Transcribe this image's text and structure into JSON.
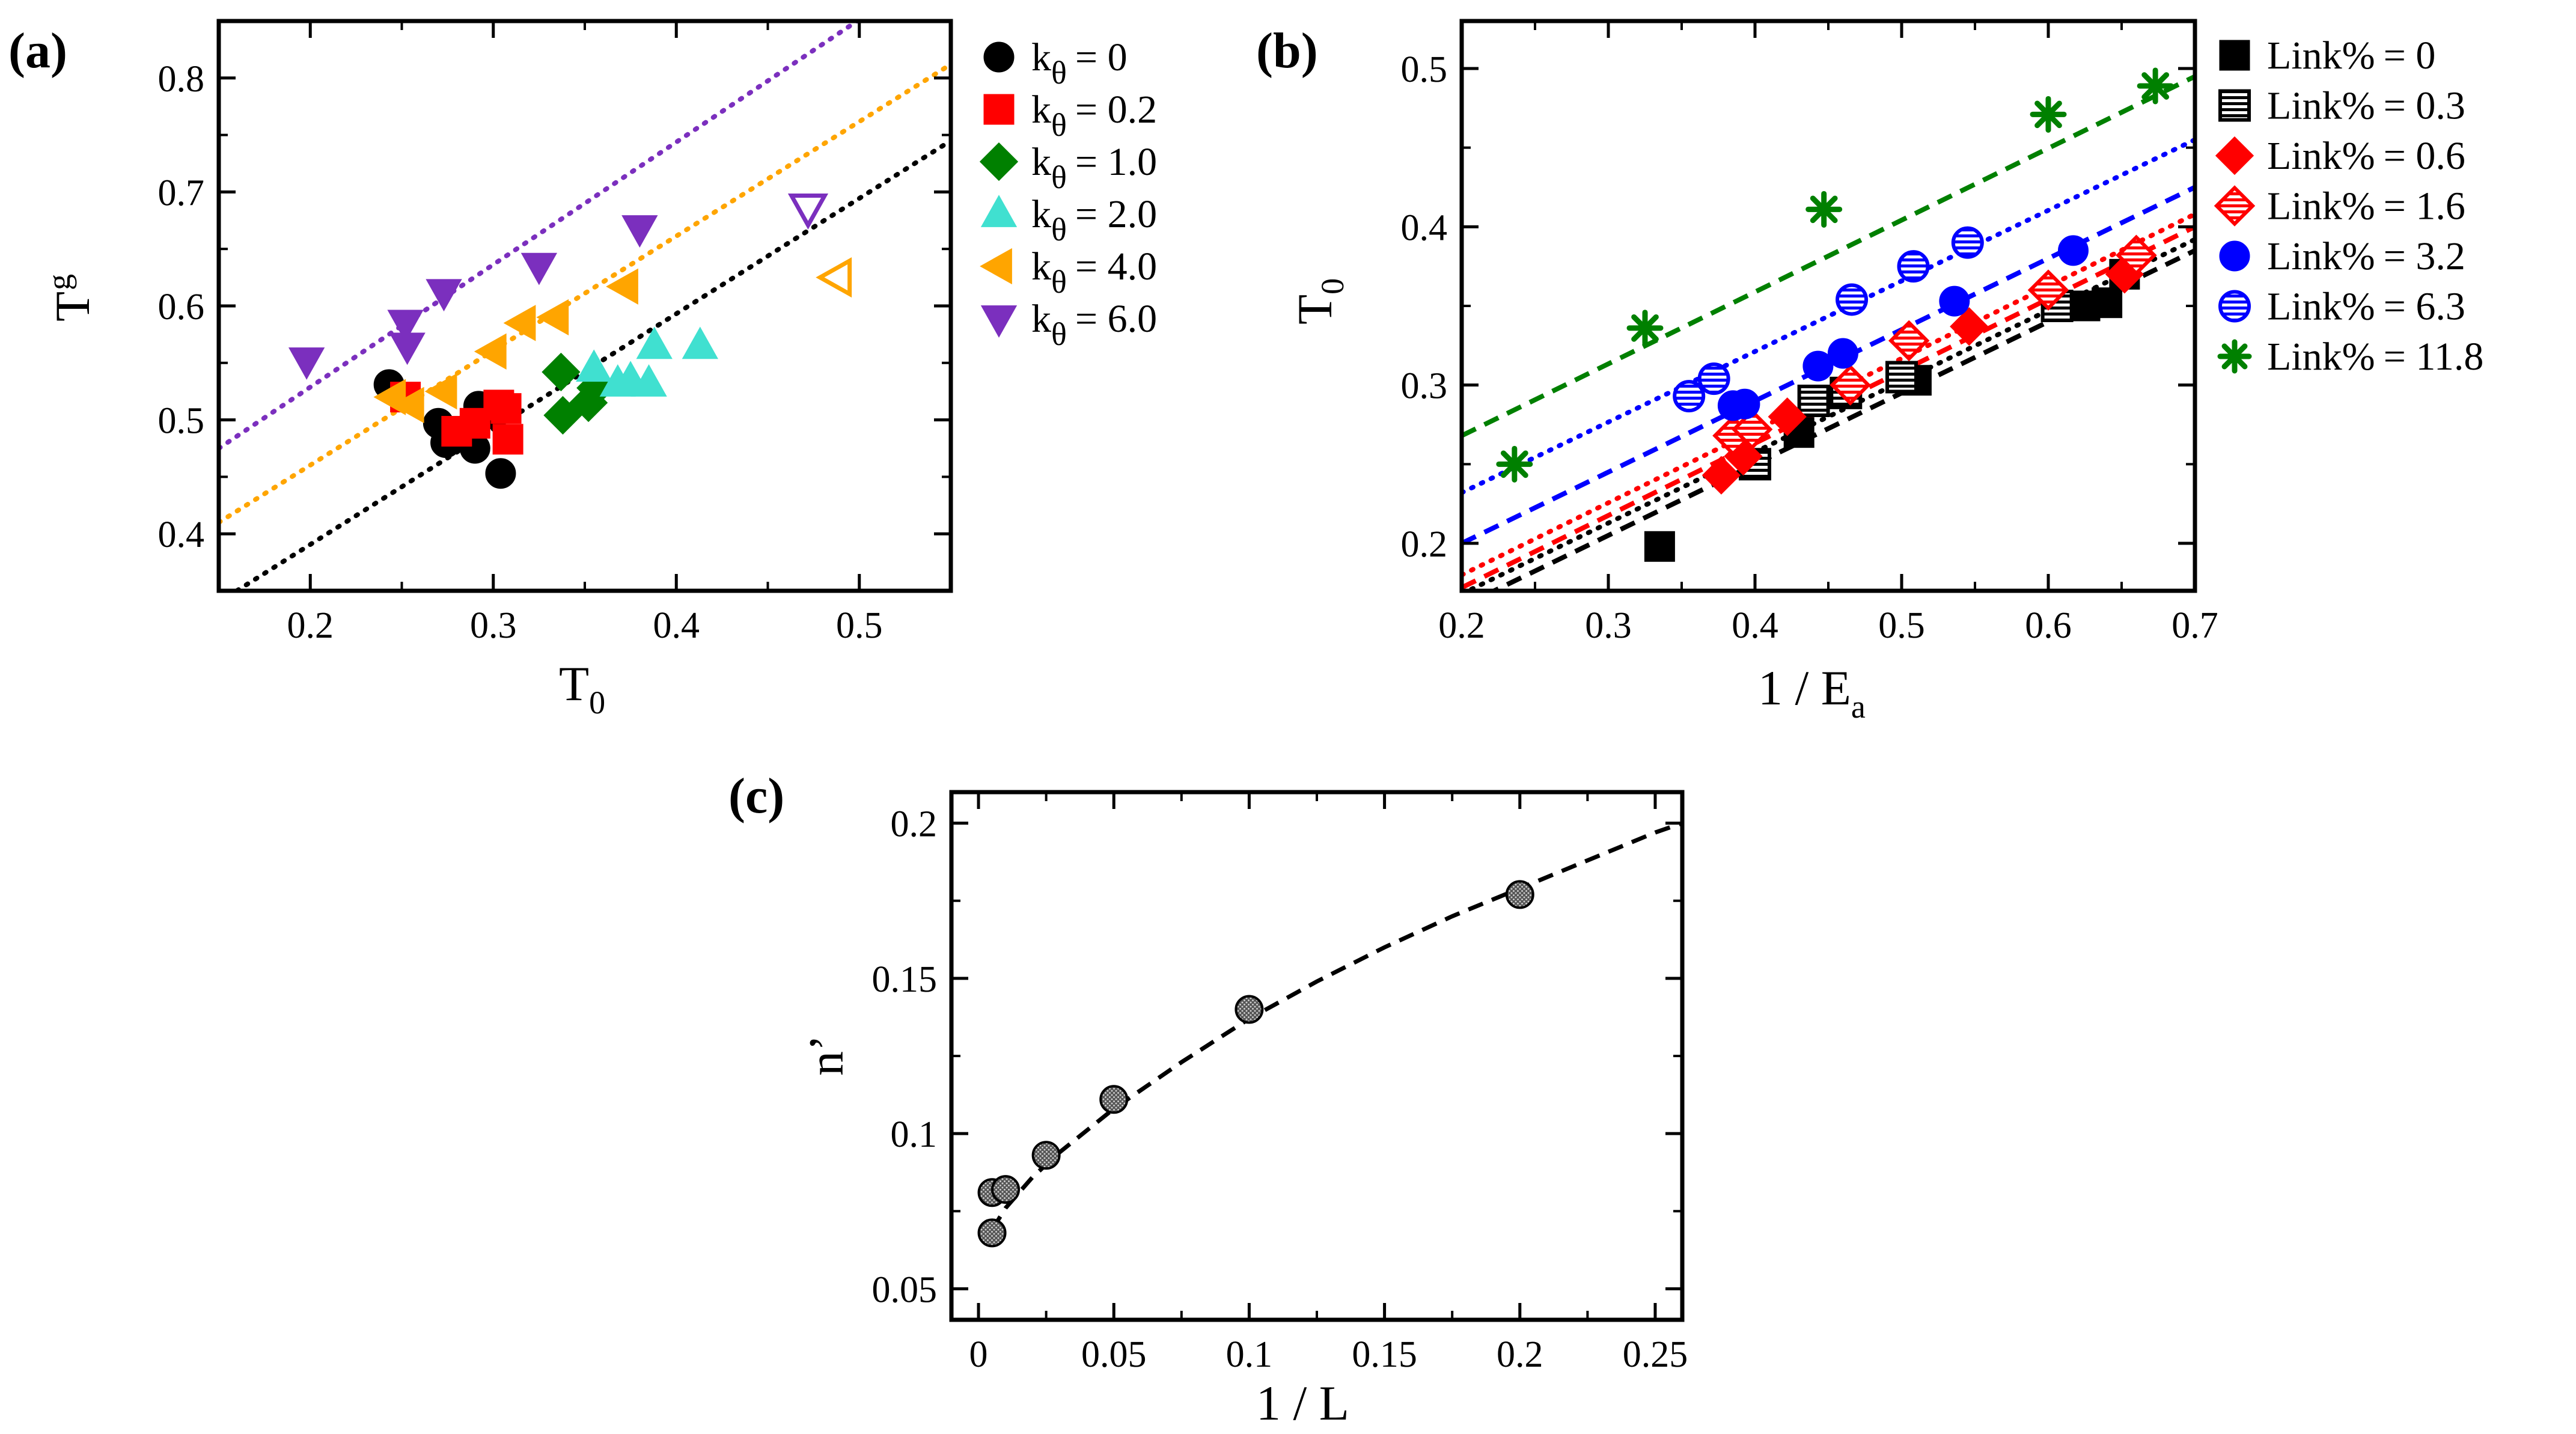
{
  "chart_data": [
    {
      "panel": "a",
      "panel_label": "(a)",
      "type": "scatter",
      "xlabel": "T",
      "xlabel_sub": "0",
      "ylabel": "T",
      "ylabel_sup": "g",
      "xlim": [
        0.15,
        0.55
      ],
      "ylim": [
        0.35,
        0.85
      ],
      "xticks": [
        0.2,
        0.3,
        0.4,
        0.5
      ],
      "xtick_labels": [
        "0.2",
        "0.3",
        "0.4",
        "0.5"
      ],
      "yticks": [
        0.4,
        0.5,
        0.6,
        0.7,
        0.8
      ],
      "ytick_labels": [
        "0.4",
        "0.5",
        "0.6",
        "0.7",
        "0.8"
      ],
      "legend_position": "right-outside",
      "legend_symbol": "k",
      "legend_symbol_sub": "θ",
      "series": [
        {
          "name": "k_theta = 0",
          "value_label": "= 0",
          "color": "#000000",
          "marker": "circle",
          "filled": true,
          "x": [
            0.243,
            0.27,
            0.274,
            0.285,
            0.29,
            0.292,
            0.3,
            0.304
          ],
          "y": [
            0.531,
            0.497,
            0.48,
            0.485,
            0.475,
            0.512,
            0.505,
            0.453
          ]
        },
        {
          "name": "k_theta = 0.2",
          "value_label": "= 0.2",
          "color": "#ff0000",
          "marker": "square",
          "filled": true,
          "x": [
            0.252,
            0.28,
            0.29,
            0.303,
            0.308,
            0.307
          ],
          "y": [
            0.52,
            0.49,
            0.497,
            0.513,
            0.483,
            0.51
          ]
        },
        {
          "name": "k_theta = 1.0",
          "value_label": "= 1.0",
          "color": "#008000",
          "marker": "diamond",
          "filled": true,
          "x": [
            0.337,
            0.338,
            0.352,
            0.356
          ],
          "y": [
            0.542,
            0.504,
            0.515,
            0.528
          ]
        },
        {
          "name": "k_theta = 2.0",
          "value_label": "= 2.0",
          "color": "#40e0d0",
          "marker": "triangle-up",
          "filled": true,
          "x": [
            0.355,
            0.368,
            0.375,
            0.385,
            0.388,
            0.413
          ],
          "y": [
            0.545,
            0.532,
            0.535,
            0.532,
            0.565,
            0.565
          ]
        },
        {
          "name": "k_theta = 4.0",
          "value_label": "= 4.0",
          "color": "#ffa500",
          "marker": "triangle-left",
          "filled": true,
          "x": [
            0.245,
            0.255,
            0.273,
            0.3,
            0.316,
            0.334,
            0.372
          ],
          "y": [
            0.52,
            0.513,
            0.525,
            0.56,
            0.585,
            0.59,
            0.617
          ]
        },
        {
          "name": "k_theta = 4.0 (open)",
          "color": "#ffa500",
          "marker": "triangle-left",
          "filled": false,
          "legend": false,
          "x": [
            0.488
          ],
          "y": [
            0.625
          ]
        },
        {
          "name": "k_theta = 6.0",
          "value_label": "= 6.0",
          "color": "#7b2fbe",
          "marker": "triangle-down",
          "filled": true,
          "x": [
            0.198,
            0.252,
            0.253,
            0.273,
            0.325,
            0.38
          ],
          "y": [
            0.552,
            0.585,
            0.565,
            0.612,
            0.635,
            0.668
          ]
        },
        {
          "name": "k_theta = 6.0 (open)",
          "color": "#7b2fbe",
          "marker": "triangle-down",
          "filled": false,
          "legend": false,
          "x": [
            0.472
          ],
          "y": [
            0.686
          ]
        }
      ],
      "fit_lines": [
        {
          "color": "#000000",
          "style": "dotted",
          "x": [
            0.15,
            0.55
          ],
          "y": [
            0.34,
            0.745
          ]
        },
        {
          "color": "#ffa500",
          "style": "dotted",
          "x": [
            0.15,
            0.55
          ],
          "y": [
            0.41,
            0.812
          ]
        },
        {
          "color": "#7b2fbe",
          "style": "dotted",
          "x": [
            0.15,
            0.55
          ],
          "y": [
            0.475,
            0.905
          ]
        }
      ]
    },
    {
      "panel": "b",
      "panel_label": "(b)",
      "type": "scatter",
      "xlabel": "1 / E",
      "xlabel_sub": "a",
      "ylabel": "T",
      "ylabel_sub": "0",
      "xlim": [
        0.2,
        0.7
      ],
      "ylim": [
        0.17,
        0.53
      ],
      "xticks": [
        0.2,
        0.3,
        0.4,
        0.5,
        0.6,
        0.7
      ],
      "xtick_labels": [
        "0.2",
        "0.3",
        "0.4",
        "0.5",
        "0.6",
        "0.7"
      ],
      "yticks": [
        0.2,
        0.3,
        0.4,
        0.5
      ],
      "ytick_labels": [
        "0.2",
        "0.3",
        "0.4",
        "0.5"
      ],
      "legend_position": "right-outside",
      "legend_symbol": "Link%",
      "series": [
        {
          "name": "Link% = 0",
          "value_label": "= 0",
          "color": "#000000",
          "marker": "square",
          "fill": "solid",
          "x": [
            0.335,
            0.43,
            0.51,
            0.625,
            0.64,
            0.652
          ],
          "y": [
            0.198,
            0.27,
            0.303,
            0.35,
            0.352,
            0.37
          ]
        },
        {
          "name": "Link% = 0.3",
          "value_label": "= 0.3",
          "color": "#000000",
          "marker": "square",
          "fill": "hatch",
          "x": [
            0.4,
            0.44,
            0.462,
            0.5,
            0.606
          ],
          "y": [
            0.25,
            0.29,
            0.295,
            0.305,
            0.35
          ]
        },
        {
          "name": "Link% = 0.6",
          "value_label": "= 0.6",
          "color": "#ff0000",
          "marker": "diamond",
          "fill": "solid",
          "x": [
            0.377,
            0.392,
            0.422,
            0.546,
            0.652
          ],
          "y": [
            0.243,
            0.255,
            0.28,
            0.337,
            0.37
          ]
        },
        {
          "name": "Link% = 1.6",
          "value_label": "= 1.6",
          "color": "#ff0000",
          "marker": "diamond",
          "fill": "hatch",
          "x": [
            0.385,
            0.398,
            0.465,
            0.505,
            0.6,
            0.66
          ],
          "y": [
            0.268,
            0.272,
            0.3,
            0.328,
            0.36,
            0.382
          ]
        },
        {
          "name": "Link% = 3.2",
          "value_label": "= 3.2",
          "color": "#0000ff",
          "marker": "circle",
          "fill": "solid",
          "x": [
            0.385,
            0.393,
            0.443,
            0.46,
            0.536,
            0.617
          ],
          "y": [
            0.287,
            0.288,
            0.312,
            0.32,
            0.353,
            0.385
          ]
        },
        {
          "name": "Link% = 6.3",
          "value_label": "= 6.3",
          "color": "#0000ff",
          "marker": "circle",
          "fill": "hatch",
          "x": [
            0.355,
            0.372,
            0.466,
            0.508,
            0.545
          ],
          "y": [
            0.293,
            0.304,
            0.354,
            0.375,
            0.39
          ]
        },
        {
          "name": "Link% = 11.8",
          "value_label": "= 11.8",
          "color": "#008000",
          "marker": "star",
          "fill": "solid",
          "x": [
            0.236,
            0.325,
            0.447,
            0.6,
            0.673
          ],
          "y": [
            0.25,
            0.336,
            0.411,
            0.471,
            0.489
          ]
        }
      ],
      "fit_lines": [
        {
          "color": "#000000",
          "style": "dashed",
          "x": [
            0.2,
            0.7
          ],
          "y": [
            0.16,
            0.385
          ]
        },
        {
          "color": "#000000",
          "style": "dotted",
          "x": [
            0.2,
            0.7
          ],
          "y": [
            0.168,
            0.392
          ]
        },
        {
          "color": "#ff0000",
          "style": "dashed",
          "x": [
            0.2,
            0.7
          ],
          "y": [
            0.172,
            0.4
          ]
        },
        {
          "color": "#ff0000",
          "style": "dotted",
          "x": [
            0.2,
            0.7
          ],
          "y": [
            0.18,
            0.408
          ]
        },
        {
          "color": "#0000ff",
          "style": "dashed",
          "x": [
            0.2,
            0.7
          ],
          "y": [
            0.2,
            0.425
          ]
        },
        {
          "color": "#0000ff",
          "style": "dotted",
          "x": [
            0.2,
            0.7
          ],
          "y": [
            0.232,
            0.455
          ]
        },
        {
          "color": "#008000",
          "style": "dashed",
          "x": [
            0.2,
            0.7
          ],
          "y": [
            0.268,
            0.495
          ]
        }
      ]
    },
    {
      "panel": "c",
      "panel_label": "(c)",
      "type": "scatter",
      "xlabel": "1 / L",
      "ylabel": "n’",
      "xlim": [
        -0.01,
        0.26
      ],
      "ylim": [
        0.04,
        0.21
      ],
      "xticks": [
        0,
        0.05,
        0.1,
        0.15,
        0.2,
        0.25
      ],
      "xtick_labels": [
        "0",
        "0.05",
        "0.1",
        "0.15",
        "0.2",
        "0.25"
      ],
      "yticks": [
        0.05,
        0.1,
        0.15,
        0.2
      ],
      "ytick_labels": [
        "0.05",
        "0.1",
        "0.15",
        "0.2"
      ],
      "series": [
        {
          "name": "n'",
          "color": "#333333",
          "marker": "circle",
          "fill": "dotted-gray",
          "x": [
            0.005,
            0.005,
            0.01,
            0.025,
            0.05,
            0.1,
            0.2
          ],
          "y": [
            0.068,
            0.081,
            0.082,
            0.093,
            0.111,
            0.14,
            0.177
          ]
        }
      ],
      "fit_curve": {
        "color": "#000000",
        "style": "dashed",
        "x": [
          0.005,
          0.01,
          0.02,
          0.03,
          0.05,
          0.075,
          0.1,
          0.125,
          0.15,
          0.175,
          0.2,
          0.225,
          0.25,
          0.26
        ],
        "y": [
          0.069,
          0.076,
          0.086,
          0.094,
          0.108,
          0.123,
          0.137,
          0.149,
          0.16,
          0.17,
          0.179,
          0.188,
          0.197,
          0.2
        ]
      }
    }
  ]
}
